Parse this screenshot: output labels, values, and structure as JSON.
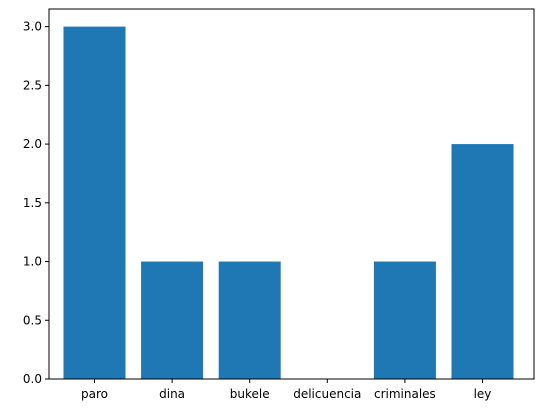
{
  "chart_data": {
    "type": "bar",
    "categories": [
      "paro",
      "dina",
      "bukele",
      "delicuencia",
      "criminales",
      "ley"
    ],
    "values": [
      3,
      1,
      1,
      0,
      1,
      2
    ],
    "yticks": [
      "0.0",
      "0.5",
      "1.0",
      "1.5",
      "2.0",
      "2.5",
      "3.0"
    ],
    "ylim": [
      0,
      3.15
    ],
    "grid": false,
    "colors": {
      "bar": "#1f77b4",
      "axis": "#000000"
    }
  }
}
